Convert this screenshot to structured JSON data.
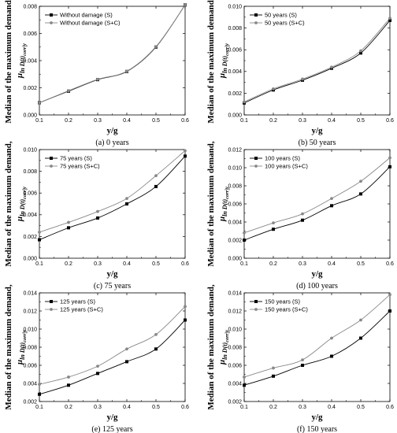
{
  "figure": {
    "ylabel_line1": "Median of the maximum demand,",
    "ylabel_line2": "μ",
    "ylabel_sub": "ln D(t)",
    "ylabel_subsub": "corr",
    "ylabel_tail": "|y",
    "xlabel": "y/g"
  },
  "chart_data": [
    {
      "type": "line",
      "caption": "(a) 0 years",
      "xlabel": "y/g",
      "ylabel": "Median of the maximum demand, μ ln D(t)corr|y",
      "x": [
        0.1,
        0.2,
        0.3,
        0.4,
        0.5,
        0.6
      ],
      "xlim": [
        0.1,
        0.6
      ],
      "xticks": [
        "0.1",
        "0.2",
        "0.3",
        "0.4",
        "0.5",
        "0.6"
      ],
      "ylim": [
        0,
        0.008
      ],
      "yticks": [
        "0.000",
        "0.002",
        "0.004",
        "0.006",
        "0.008"
      ],
      "legend_position": "top-left",
      "series": [
        {
          "name": "Without damage (S)",
          "values": [
            0.0009,
            0.00175,
            0.0026,
            0.0032,
            0.005,
            0.0081
          ],
          "color": "#000000",
          "marker": "square"
        },
        {
          "name": "Without damage (S+C)",
          "values": [
            0.0009,
            0.00178,
            0.00262,
            0.00322,
            0.00503,
            0.0081
          ],
          "color": "#888888",
          "marker": "circle"
        }
      ]
    },
    {
      "type": "line",
      "caption": "(b) 50 years",
      "xlabel": "y/g",
      "ylabel": "Median of the maximum demand, μ ln D(t)corr|y",
      "x": [
        0.1,
        0.2,
        0.3,
        0.4,
        0.5,
        0.6
      ],
      "xlim": [
        0.1,
        0.6
      ],
      "xticks": [
        "0.1",
        "0.2",
        "0.3",
        "0.4",
        "0.5",
        "0.6"
      ],
      "ylim": [
        0,
        0.01
      ],
      "yticks": [
        "0.000",
        "0.002",
        "0.004",
        "0.006",
        "0.008",
        "0.010"
      ],
      "legend_position": "top-left",
      "series": [
        {
          "name": "50 years (S)",
          "values": [
            0.0011,
            0.0023,
            0.0032,
            0.0043,
            0.0057,
            0.0087
          ],
          "color": "#000000",
          "marker": "square"
        },
        {
          "name": "50 years (S+C)",
          "values": [
            0.0012,
            0.0024,
            0.0033,
            0.0044,
            0.0059,
            0.0089
          ],
          "color": "#888888",
          "marker": "circle"
        }
      ]
    },
    {
      "type": "line",
      "caption": "(c) 75 years",
      "xlabel": "y/g",
      "ylabel": "Median of the maximum demand, μ ln D(t)corr|y",
      "x": [
        0.1,
        0.2,
        0.3,
        0.4,
        0.5,
        0.6
      ],
      "xlim": [
        0.1,
        0.6
      ],
      "xticks": [
        "0.1",
        "0.2",
        "0.3",
        "0.4",
        "0.5",
        "0.6"
      ],
      "ylim": [
        0,
        0.01
      ],
      "yticks": [
        "0.000",
        "0.002",
        "0.004",
        "0.006",
        "0.008",
        "0.010"
      ],
      "legend_position": "top-left",
      "series": [
        {
          "name": "75 years (S)",
          "values": [
            0.0017,
            0.0028,
            0.0037,
            0.005,
            0.0066,
            0.0094
          ],
          "color": "#000000",
          "marker": "square"
        },
        {
          "name": "75 years (S+C)",
          "values": [
            0.0024,
            0.0033,
            0.0043,
            0.0055,
            0.0076,
            0.0099
          ],
          "color": "#888888",
          "marker": "circle"
        }
      ]
    },
    {
      "type": "line",
      "caption": "(d) 100 years",
      "xlabel": "y/g",
      "ylabel": "Median of the maximum demand, μ ln D(t)corr|y",
      "x": [
        0.1,
        0.2,
        0.3,
        0.4,
        0.5,
        0.6
      ],
      "xlim": [
        0.1,
        0.6
      ],
      "xticks": [
        "0.1",
        "0.2",
        "0.3",
        "0.4",
        "0.5",
        "0.6"
      ],
      "ylim": [
        0,
        0.012
      ],
      "yticks": [
        "0.000",
        "0.002",
        "0.004",
        "0.006",
        "0.008",
        "0.010",
        "0.012"
      ],
      "legend_position": "top-left",
      "series": [
        {
          "name": "100 years (S)",
          "values": [
            0.002,
            0.0032,
            0.0042,
            0.0058,
            0.0071,
            0.0101
          ],
          "color": "#000000",
          "marker": "square"
        },
        {
          "name": "100 years (S+C)",
          "values": [
            0.0028,
            0.0039,
            0.0049,
            0.0066,
            0.0085,
            0.0111
          ],
          "color": "#888888",
          "marker": "circle"
        }
      ]
    },
    {
      "type": "line",
      "caption": "(e) 125 years",
      "xlabel": "y/g",
      "ylabel": "Median of the maximum demand, μ ln D(t)corr|y",
      "x": [
        0.1,
        0.2,
        0.3,
        0.4,
        0.5,
        0.6
      ],
      "xlim": [
        0.1,
        0.6
      ],
      "xticks": [
        "0.1",
        "0.2",
        "0.3",
        "0.4",
        "0.5",
        "0.6"
      ],
      "ylim": [
        0.002,
        0.014
      ],
      "yticks": [
        "0.002",
        "0.004",
        "0.006",
        "0.008",
        "0.010",
        "0.012",
        "0.014"
      ],
      "legend_position": "top-left",
      "series": [
        {
          "name": "125 years (S)",
          "values": [
            0.0028,
            0.0038,
            0.0051,
            0.0064,
            0.0078,
            0.011
          ],
          "color": "#000000",
          "marker": "square"
        },
        {
          "name": "125 years (S+C)",
          "values": [
            0.0039,
            0.0047,
            0.0059,
            0.0078,
            0.0094,
            0.0125
          ],
          "color": "#888888",
          "marker": "circle"
        }
      ]
    },
    {
      "type": "line",
      "caption": "(f) 150 years",
      "xlabel": "y/g",
      "ylabel": "Median of the maximum demand, μ ln D(t)corr|y",
      "x": [
        0.1,
        0.2,
        0.3,
        0.4,
        0.5,
        0.6
      ],
      "xlim": [
        0.1,
        0.6
      ],
      "xticks": [
        "0.1",
        "0.2",
        "0.3",
        "0.4",
        "0.5",
        "0.6"
      ],
      "ylim": [
        0.002,
        0.014
      ],
      "yticks": [
        "0.002",
        "0.004",
        "0.006",
        "0.008",
        "0.010",
        "0.012",
        "0.014"
      ],
      "legend_position": "top-left",
      "series": [
        {
          "name": "150 years (S)",
          "values": [
            0.0038,
            0.0048,
            0.006,
            0.007,
            0.009,
            0.012
          ],
          "color": "#000000",
          "marker": "square"
        },
        {
          "name": "150 years (S+C)",
          "values": [
            0.0047,
            0.0057,
            0.0066,
            0.009,
            0.011,
            0.0138
          ],
          "color": "#888888",
          "marker": "circle"
        }
      ]
    }
  ]
}
